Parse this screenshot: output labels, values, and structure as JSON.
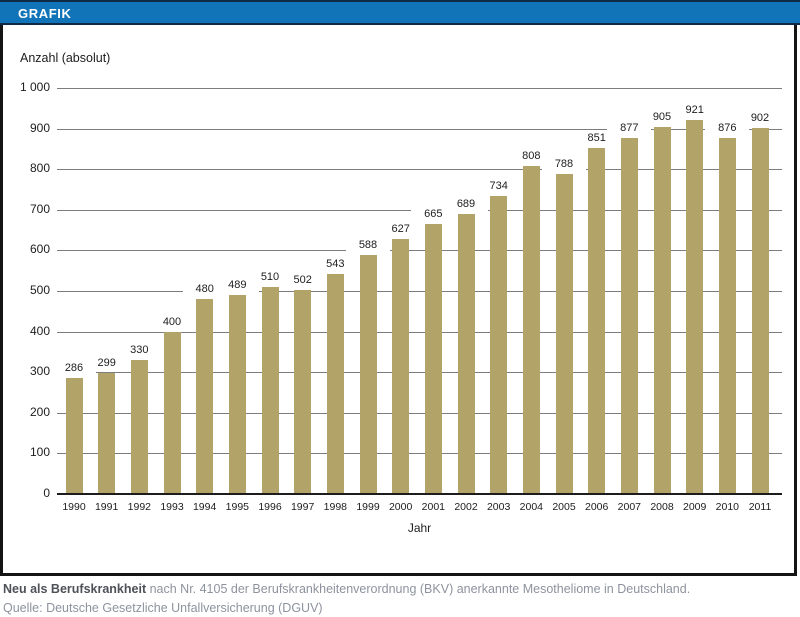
{
  "header": {
    "title": "GRAFIK"
  },
  "chart_data": {
    "type": "bar",
    "title": "GRAFIK",
    "ylabel": "Anzahl (absolut)",
    "xlabel": "Jahr",
    "categories": [
      "1990",
      "1991",
      "1992",
      "1993",
      "1994",
      "1995",
      "1996",
      "1997",
      "1998",
      "1999",
      "2000",
      "2001",
      "2002",
      "2003",
      "2004",
      "2005",
      "2006",
      "2007",
      "2008",
      "2009",
      "2010",
      "2011"
    ],
    "values": [
      286,
      299,
      330,
      400,
      480,
      489,
      510,
      502,
      543,
      588,
      627,
      665,
      689,
      734,
      808,
      788,
      851,
      877,
      905,
      921,
      876,
      902
    ],
    "ylim": [
      0,
      1000
    ],
    "yticks": {
      "values": [
        0,
        100,
        200,
        300,
        400,
        500,
        600,
        700,
        800,
        900,
        1000
      ],
      "labels": [
        "0",
        "100",
        "200",
        "300",
        "400",
        "500",
        "600",
        "700",
        "800",
        "900",
        "1 000"
      ]
    },
    "grid": true,
    "legend": "none",
    "data_labels": true
  },
  "footer": {
    "line1_bold": "Neu als Berufskrankheit",
    "line1_rest": " nach Nr. 4105 der Berufskrankheitenverordnung (BKV) anerkannte Mesotheliome in Deutschland.",
    "line2": "Quelle: Deutsche Gesetzliche Unfallversicherung (DGUV)"
  },
  "colors": {
    "header_bg": "#1274b8",
    "header_line": "#0d2b44",
    "bar": "#b2a369",
    "grid": "#7d7d7d",
    "axis": "#1c1c1c",
    "text": "#1d1d1f",
    "footer_bold": "#4d5158",
    "footer_text": "#8d939e"
  }
}
